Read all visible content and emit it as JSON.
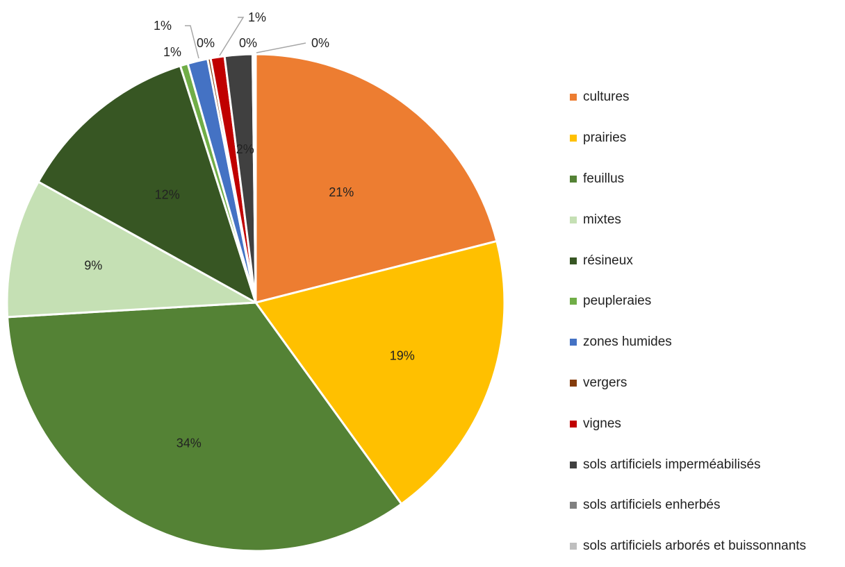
{
  "chart_data": {
    "type": "pie",
    "title": "",
    "slices": [
      {
        "name": "cultures",
        "value": 21,
        "label": "21%",
        "color": "#ED7D31"
      },
      {
        "name": "prairies",
        "value": 19,
        "label": "19%",
        "color": "#FFC000"
      },
      {
        "name": "feuillus",
        "value": 34,
        "label": "34%",
        "color": "#548235"
      },
      {
        "name": "mixtes",
        "value": 9,
        "label": "9%",
        "color": "#C5E0B4"
      },
      {
        "name": "résineux",
        "value": 12,
        "label": "12%",
        "color": "#375623"
      },
      {
        "name": "peupleraies",
        "value": 0.5,
        "label": "1%",
        "color": "#70AD47"
      },
      {
        "name": "zones humides",
        "value": 1.3,
        "label": "1%",
        "color": "#4472C4"
      },
      {
        "name": "vergers",
        "value": 0.2,
        "label": "0%",
        "color": "#843C0C"
      },
      {
        "name": "vignes",
        "value": 0.9,
        "label": "1%",
        "color": "#C00000"
      },
      {
        "name": "sols artificiels imperméabilisés",
        "value": 1.8,
        "label": "2%",
        "color": "#404040"
      },
      {
        "name": "sols artificiels enherbés",
        "value": 0.1,
        "label": "0%",
        "color": "#808080"
      },
      {
        "name": "sols artificiels arborés et buissonnants",
        "value": 0.1,
        "label": "0%",
        "color": "#BFBFBF"
      }
    ],
    "legend_position": "right"
  }
}
